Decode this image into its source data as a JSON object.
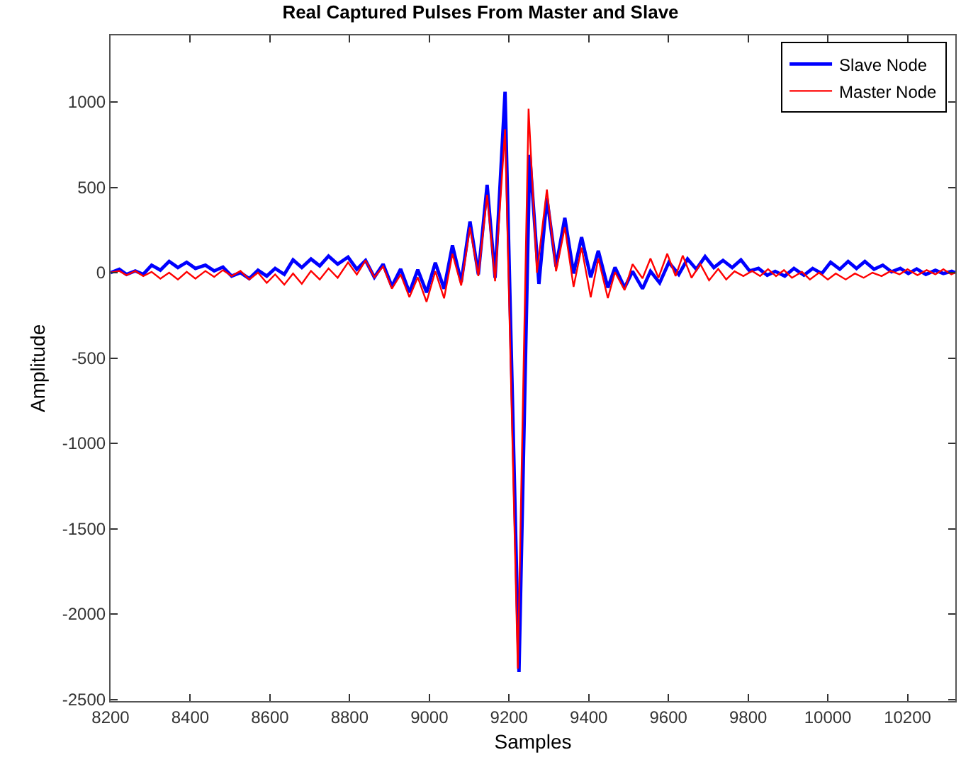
{
  "chart_data": {
    "type": "line",
    "title": "Real Captured Pulses From Master and Slave",
    "xlabel": "Samples",
    "ylabel": "Amplitude",
    "xlim": [
      8200,
      10320
    ],
    "ylim": [
      -2510,
      1390
    ],
    "xticks": [
      8200,
      8400,
      8600,
      8800,
      9000,
      9200,
      9400,
      9600,
      9800,
      10000,
      10200
    ],
    "yticks": [
      -2500,
      -2000,
      -1500,
      -1000,
      -500,
      0,
      500,
      1000
    ],
    "grid": false,
    "legend": "top right",
    "marker": "none",
    "line_style": "solid",
    "series": [
      {
        "name": "Slave Node",
        "color": "#0000ff",
        "x": [
          8200,
          8222,
          8240,
          8262,
          8282,
          8303,
          8325,
          8347,
          8369,
          8391,
          8413,
          8438,
          8460,
          8482,
          8504,
          8526,
          8548,
          8570,
          8592,
          8613,
          8636,
          8658,
          8680,
          8703,
          8725,
          8747,
          8770,
          8796,
          8818,
          8840,
          8862,
          8884,
          8906,
          8928,
          8950,
          8971,
          8993,
          9015,
          9037,
          9058,
          9080,
          9102,
          9123,
          9145,
          9165,
          9190,
          9225,
          9252,
          9275,
          9295,
          9318,
          9340,
          9362,
          9382,
          9405,
          9424,
          9448,
          9466,
          9490,
          9510,
          9535,
          9555,
          9578,
          9601,
          9626,
          9648,
          9670,
          9692,
          9714,
          9737,
          9760,
          9782,
          9804,
          9826,
          9848,
          9868,
          9892,
          9915,
          9940,
          9962,
          9985,
          10007,
          10030,
          10051,
          10072,
          10093,
          10116,
          10138,
          10160,
          10182,
          10202,
          10223,
          10246,
          10270,
          10290,
          10311,
          10320
        ],
        "values": [
          0,
          20,
          -10,
          10,
          -10,
          44,
          15,
          66,
          30,
          61,
          25,
          44,
          10,
          33,
          -20,
          0,
          -35,
          14,
          -20,
          25,
          -10,
          75,
          30,
          80,
          40,
          97,
          50,
          91,
          20,
          72,
          -27,
          50,
          -80,
          22,
          -116,
          17,
          -116,
          58,
          -94,
          160,
          -55,
          300,
          -10,
          515,
          -30,
          1060,
          -2340,
          690,
          -66,
          437,
          36,
          321,
          -5,
          208,
          -27,
          128,
          -88,
          31,
          -88,
          8,
          -94,
          8,
          -60,
          60,
          -10,
          80,
          20,
          94,
          30,
          72,
          30,
          75,
          10,
          25,
          -15,
          8,
          -20,
          25,
          -15,
          25,
          -5,
          61,
          20,
          66,
          25,
          66,
          20,
          44,
          5,
          25,
          -5,
          22,
          -10,
          14,
          -5,
          8,
          0
        ]
      },
      {
        "name": "Master Node",
        "color": "#ff0000",
        "x": [
          8200,
          8222,
          8240,
          8262,
          8282,
          8303,
          8325,
          8347,
          8369,
          8391,
          8413,
          8438,
          8460,
          8482,
          8504,
          8526,
          8548,
          8570,
          8592,
          8613,
          8636,
          8658,
          8680,
          8703,
          8725,
          8747,
          8770,
          8796,
          8818,
          8840,
          8862,
          8884,
          8906,
          8928,
          8950,
          8971,
          8993,
          9015,
          9037,
          9058,
          9080,
          9102,
          9123,
          9145,
          9165,
          9190,
          9222,
          9249,
          9270,
          9295,
          9318,
          9340,
          9362,
          9382,
          9405,
          9424,
          9448,
          9466,
          9490,
          9510,
          9535,
          9555,
          9575,
          9597,
          9618,
          9636,
          9658,
          9680,
          9702,
          9725,
          9745,
          9766,
          9788,
          9810,
          9830,
          9850,
          9870,
          9890,
          9910,
          9935,
          9955,
          9978,
          10000,
          10020,
          10045,
          10068,
          10090,
          10112,
          10135,
          10158,
          10180,
          10200,
          10225,
          10248,
          10270,
          10290,
          10310,
          10320
        ],
        "values": [
          0,
          10,
          -15,
          10,
          -20,
          5,
          -35,
          0,
          -40,
          5,
          -35,
          10,
          -25,
          15,
          -20,
          10,
          -40,
          0,
          -60,
          -10,
          -70,
          -5,
          -65,
          10,
          -40,
          25,
          -30,
          60,
          -11,
          72,
          -27,
          36,
          -94,
          -11,
          -143,
          -27,
          -171,
          8,
          -150,
          111,
          -75,
          265,
          -20,
          456,
          -50,
          840,
          -2320,
          960,
          0,
          487,
          8,
          266,
          -83,
          147,
          -144,
          83,
          -149,
          3,
          -102,
          50,
          -33,
          83,
          -30,
          111,
          -20,
          100,
          -30,
          50,
          -45,
          22,
          -40,
          8,
          -20,
          10,
          -20,
          20,
          -20,
          15,
          -30,
          5,
          -40,
          0,
          -40,
          -5,
          -40,
          -5,
          -30,
          0,
          -20,
          10,
          -10,
          20,
          -15,
          15,
          -10,
          20,
          -10,
          0
        ]
      }
    ]
  }
}
